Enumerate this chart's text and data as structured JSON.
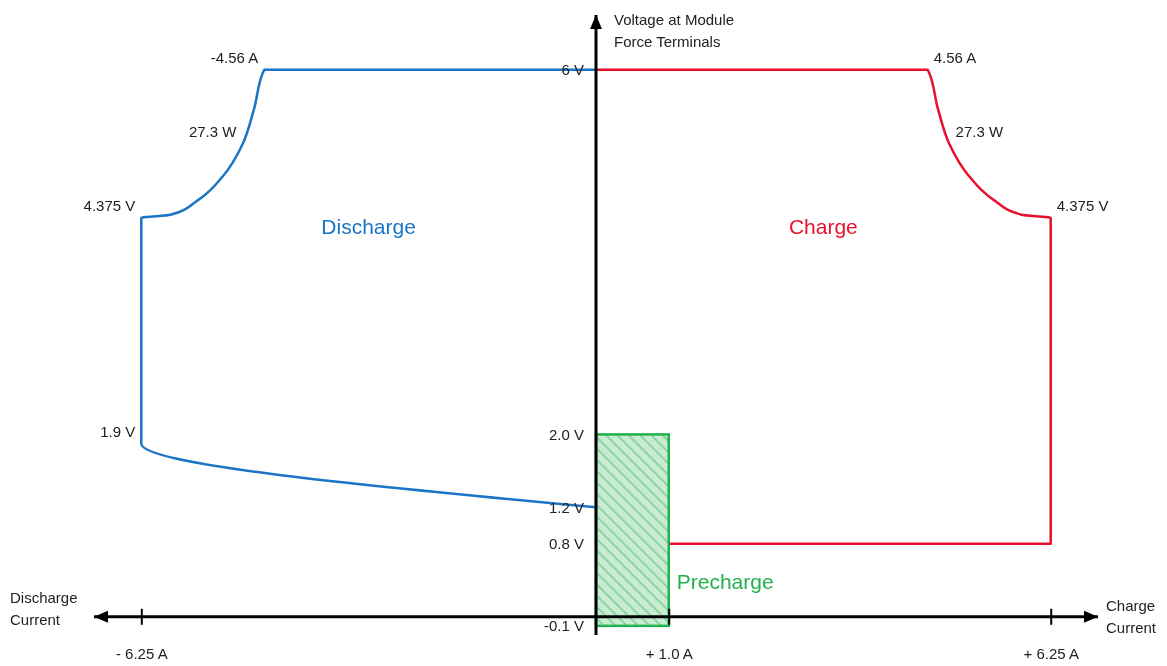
{
  "chart_data": {
    "type": "line",
    "xlabel": "Charge Current",
    "ylabel": "Voltage at Module Force Terminals",
    "xlim": [
      -6.9,
      6.9
    ],
    "ylim": [
      -0.2,
      6.6
    ],
    "xticks": [
      {
        "value": -6.25,
        "label": "- 6.25 A"
      },
      {
        "value": 1.0,
        "label": "+ 1.0 A"
      },
      {
        "value": 6.25,
        "label": "+ 6.25 A"
      }
    ],
    "yticks": [
      {
        "value": -0.1,
        "label": "-0.1 V"
      },
      {
        "value": 0.8,
        "label": "0.8 V"
      },
      {
        "value": 1.2,
        "label": "1.2 V"
      },
      {
        "value": 2.0,
        "label": "2.0 V"
      },
      {
        "value": 6,
        "label": "6 V"
      }
    ],
    "grid": false,
    "legend": false,
    "series": [
      {
        "name": "Discharge",
        "color": "#1b75c6",
        "x": [
          0,
          -4.56,
          -4.7,
          -4.86,
          -5.12,
          -5.47,
          -5.85,
          -6.25,
          -6.25,
          0
        ],
        "values": [
          6,
          6,
          5.57,
          5.18,
          4.84,
          4.57,
          4.41,
          4.375,
          1.9,
          1.2
        ]
      },
      {
        "name": "Charge",
        "color": "#e8112d",
        "x": [
          0,
          4.56,
          4.7,
          4.86,
          5.12,
          5.47,
          5.85,
          6.25,
          6.25,
          1.0
        ],
        "values": [
          6,
          6,
          5.57,
          5.18,
          4.84,
          4.57,
          4.41,
          4.375,
          0.8,
          0.8
        ]
      },
      {
        "name": "Precharge",
        "type": "bar",
        "color": "#22b14c",
        "x": [
          0.5
        ],
        "values": [
          2.1
        ],
        "base": [
          -0.1
        ]
      }
    ],
    "annotations": [
      {
        "text": "-4.56 A",
        "x": -4.56,
        "y": 6
      },
      {
        "text": "4.56 A",
        "x": 4.56,
        "y": 6
      },
      {
        "text": "27.3 W",
        "x": -4.86,
        "y": 5.18
      },
      {
        "text": "27.3 W",
        "x": 4.86,
        "y": 5.18
      },
      {
        "text": "4.375 V",
        "x": -6.25,
        "y": 4.375
      },
      {
        "text": "4.375 V",
        "x": 6.25,
        "y": 4.375
      },
      {
        "text": "1.9 V",
        "x": -6.25,
        "y": 1.9
      },
      "Discharge Current"
    ]
  }
}
